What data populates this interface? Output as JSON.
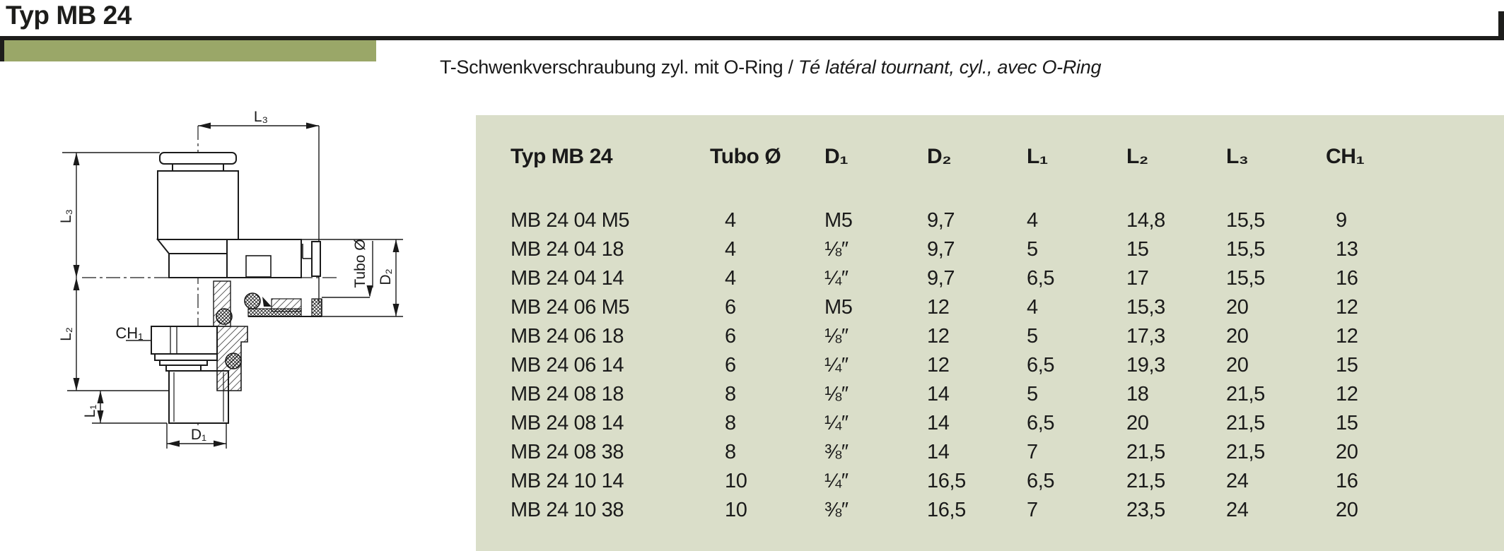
{
  "page": {
    "title": "Typ MB 24",
    "subtitle_de": "T-Schwenkverschraubung zyl. mit O-Ring",
    "subtitle_sep": " / ",
    "subtitle_fr": "Té latéral tournant, cyl., avec O-Ring"
  },
  "drawing": {
    "labels": {
      "l3_top": "L₃",
      "l3_left": "L₃",
      "l2": "L₂",
      "l1": "L₁",
      "d1": "D₁",
      "d2": "D₂",
      "ch1": "CH₁",
      "tubo": "Tubo Ø"
    }
  },
  "table": {
    "headers": [
      "Typ MB 24",
      "Tubo Ø",
      "D₁",
      "D₂",
      "L₁",
      "L₂",
      "L₃",
      "CH₁"
    ],
    "rows": [
      [
        "MB 24 04 M5",
        "4",
        "M5",
        "9,7",
        "4",
        "14,8",
        "15,5",
        "9"
      ],
      [
        "MB 24 04 18",
        "4",
        "⅛″",
        "9,7",
        "5",
        "15",
        "15,5",
        "13"
      ],
      [
        "MB 24 04 14",
        "4",
        "¼″",
        "9,7",
        "6,5",
        "17",
        "15,5",
        "16"
      ],
      [
        "MB 24 06 M5",
        "6",
        "M5",
        "12",
        "4",
        "15,3",
        "20",
        "12"
      ],
      [
        "MB 24 06 18",
        "6",
        "⅛″",
        "12",
        "5",
        "17,3",
        "20",
        "12"
      ],
      [
        "MB 24 06 14",
        "6",
        "¼″",
        "12",
        "6,5",
        "19,3",
        "20",
        "15"
      ],
      [
        "MB 24 08 18",
        "8",
        "⅛″",
        "14",
        "5",
        "18",
        "21,5",
        "12"
      ],
      [
        "MB 24 08 14",
        "8",
        "¼″",
        "14",
        "6,5",
        "20",
        "21,5",
        "15"
      ],
      [
        "MB 24 08 38",
        "8",
        "⅜″",
        "14",
        "7",
        "21,5",
        "21,5",
        "20"
      ],
      [
        "MB 24 10 14",
        "10",
        "¼″",
        "16,5",
        "6,5",
        "21,5",
        "24",
        "16"
      ],
      [
        "MB 24 10 38",
        "10",
        "⅜″",
        "16,5",
        "7",
        "23,5",
        "24",
        "20"
      ]
    ]
  },
  "colors": {
    "accent_bar": "#9aa768",
    "table_bg": "#dadec9",
    "rule": "#1d1d1b",
    "line": "#1a1a1a"
  }
}
